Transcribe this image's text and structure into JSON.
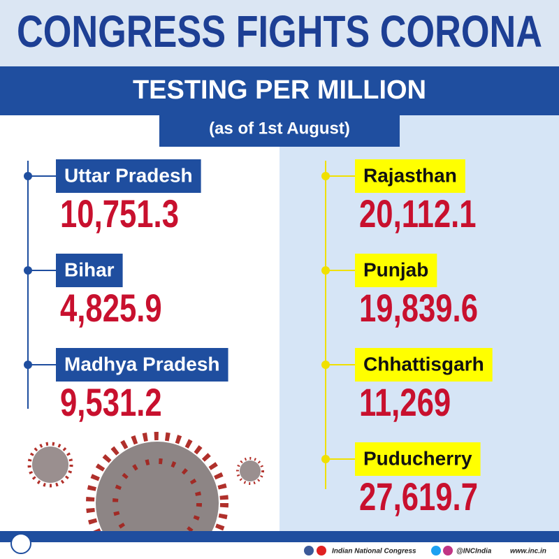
{
  "header": {
    "title": "CONGRESS FIGHTS CORONA",
    "subtitle": "TESTING PER MILLION",
    "date": "(as of 1st August)"
  },
  "left": {
    "items": [
      {
        "name": "Uttar Pradesh",
        "value": "10,751.3"
      },
      {
        "name": "Bihar",
        "value": "4,825.9"
      },
      {
        "name": "Madhya Pradesh",
        "value": "9,531.2"
      }
    ]
  },
  "right": {
    "items": [
      {
        "name": "Rajasthan",
        "value": "20,112.1"
      },
      {
        "name": "Punjab",
        "value": "19,839.6"
      },
      {
        "name": "Chhattisgarh",
        "value": "11,269"
      },
      {
        "name": "Puducherry",
        "value": "27,619.7"
      }
    ]
  },
  "footer": {
    "party": "Indian National Congress",
    "handle": "@INCIndia",
    "website": "www.inc.in"
  }
}
